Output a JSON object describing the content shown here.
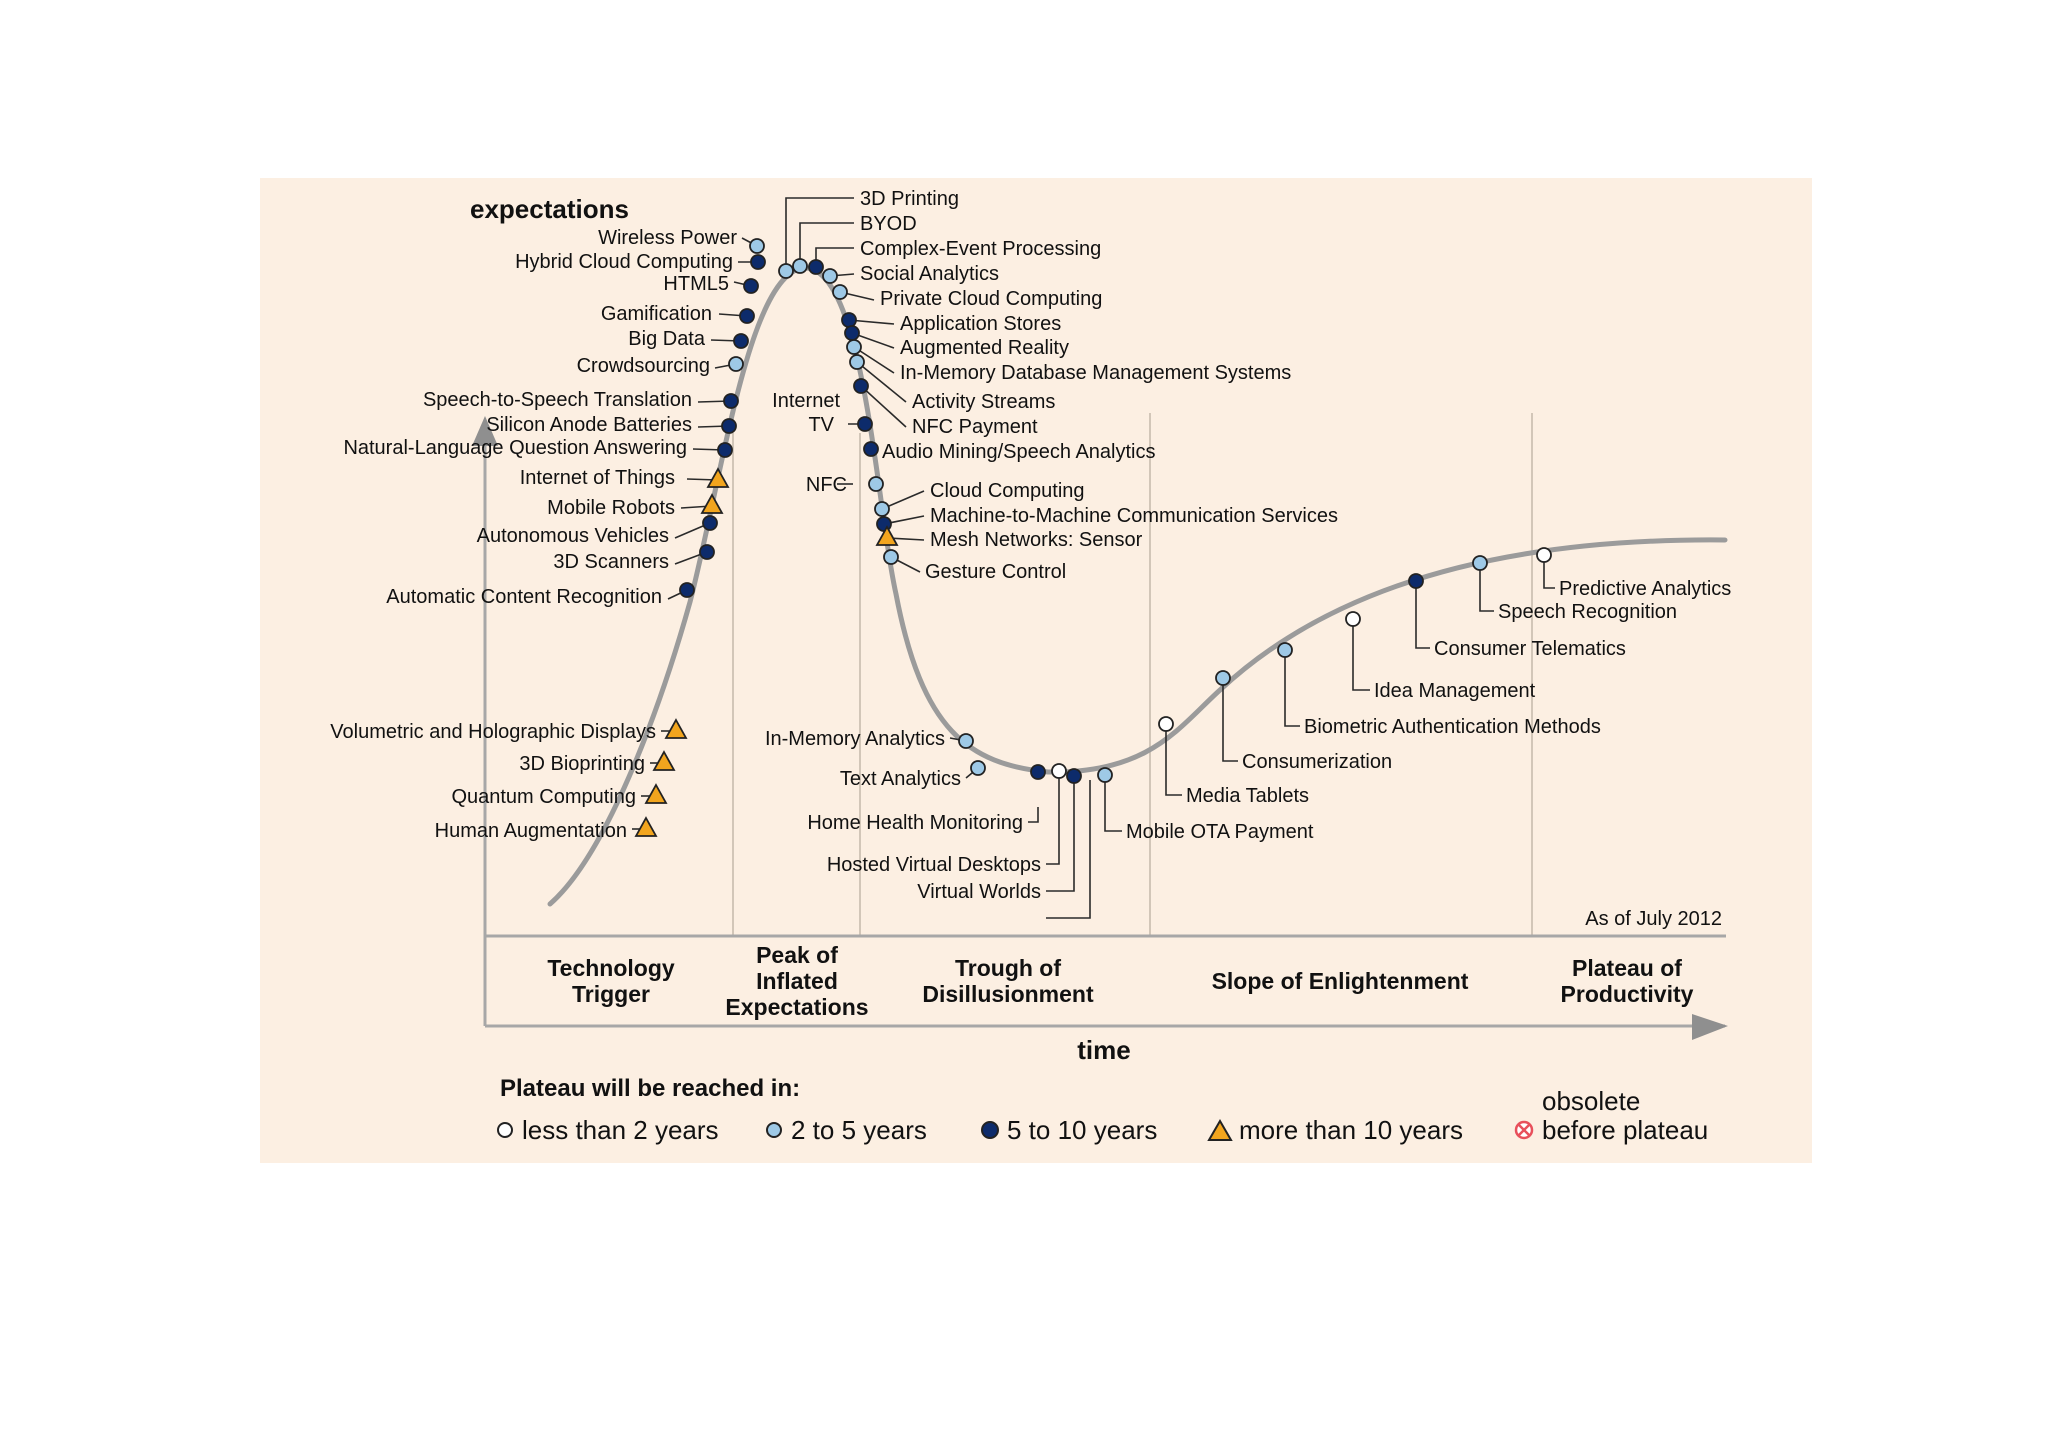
{
  "axis": {
    "y_label": "expectations",
    "x_label": "time"
  },
  "as_of": "As of July 2012",
  "phases": [
    {
      "lines": [
        "Technology",
        "Trigger"
      ]
    },
    {
      "lines": [
        "Peak of",
        "Inflated",
        "Expectations"
      ]
    },
    {
      "lines": [
        "Trough of",
        "Disillusionment"
      ]
    },
    {
      "lines": [
        "Slope of Enlightenment"
      ]
    },
    {
      "lines": [
        "Plateau of",
        "Productivity"
      ]
    }
  ],
  "legend": {
    "title": "Plateau will be reached in:",
    "items": [
      {
        "key": "lt2",
        "label": "less than 2 years"
      },
      {
        "key": "2to5",
        "label": "2 to 5 years"
      },
      {
        "key": "5to10",
        "label": "5 to 10 years"
      },
      {
        "key": "gt10",
        "label": "more than 10 years"
      },
      {
        "key": "obsolete",
        "label_line1": "obsolete",
        "label_line2": "before plateau"
      }
    ]
  },
  "colors": {
    "panel": "#fcefe2",
    "curve": "#9b9b9b",
    "lt2": "#ffffff",
    "2to5": "#9ec9e6",
    "5to10": "#0d2b6b",
    "gt10": "#f2a51e",
    "obsolete": "#e8505b"
  },
  "technologies": [
    {
      "name": "3D Printing",
      "category": "2to5"
    },
    {
      "name": "BYOD",
      "category": "2to5"
    },
    {
      "name": "Complex-Event Processing",
      "category": "5to10"
    },
    {
      "name": "Social Analytics",
      "category": "2to5"
    },
    {
      "name": "Private Cloud Computing",
      "category": "2to5"
    },
    {
      "name": "Application Stores",
      "category": "5to10"
    },
    {
      "name": "Augmented Reality",
      "category": "5to10"
    },
    {
      "name": "In-Memory Database Management Systems",
      "category": "2to5"
    },
    {
      "name": "Activity Streams",
      "category": "2to5"
    },
    {
      "name": "NFC Payment",
      "category": "5to10"
    },
    {
      "name": "Internet TV",
      "category": "5to10"
    },
    {
      "name": "Audio Mining/Speech Analytics",
      "category": "5to10"
    },
    {
      "name": "NFC",
      "category": "2to5"
    },
    {
      "name": "Cloud Computing",
      "category": "2to5"
    },
    {
      "name": "Machine-to-Machine Communication Services",
      "category": "5to10"
    },
    {
      "name": "Mesh Networks: Sensor",
      "category": "gt10"
    },
    {
      "name": "Gesture Control",
      "category": "2to5"
    },
    {
      "name": "Wireless Power",
      "category": "2to5"
    },
    {
      "name": "Hybrid Cloud Computing",
      "category": "5to10"
    },
    {
      "name": "HTML5",
      "category": "5to10"
    },
    {
      "name": "Gamification",
      "category": "5to10"
    },
    {
      "name": "Big Data",
      "category": "5to10"
    },
    {
      "name": "Crowdsourcing",
      "category": "2to5"
    },
    {
      "name": "Speech-to-Speech Translation",
      "category": "5to10"
    },
    {
      "name": "Silicon Anode Batteries",
      "category": "5to10"
    },
    {
      "name": "Natural-Language Question Answering",
      "category": "5to10"
    },
    {
      "name": "Internet of Things",
      "category": "gt10"
    },
    {
      "name": "Mobile Robots",
      "category": "gt10"
    },
    {
      "name": "Autonomous Vehicles",
      "category": "5to10"
    },
    {
      "name": "3D Scanners",
      "category": "5to10"
    },
    {
      "name": "Automatic Content Recognition",
      "category": "5to10"
    },
    {
      "name": "Volumetric and Holographic Displays",
      "category": "gt10"
    },
    {
      "name": "3D Bioprinting",
      "category": "gt10"
    },
    {
      "name": "Quantum Computing",
      "category": "gt10"
    },
    {
      "name": "Human Augmentation",
      "category": "gt10"
    },
    {
      "name": "In-Memory Analytics",
      "category": "2to5"
    },
    {
      "name": "Text Analytics",
      "category": "2to5"
    },
    {
      "name": "Home Health Monitoring",
      "category": "5to10"
    },
    {
      "name": "Hosted Virtual Desktops",
      "category": "lt2"
    },
    {
      "name": "Virtual Worlds",
      "category": "5to10"
    },
    {
      "name": "Mobile OTA Payment",
      "category": "2to5"
    },
    {
      "name": "Media Tablets",
      "category": "lt2"
    },
    {
      "name": "Consumerization",
      "category": "2to5"
    },
    {
      "name": "Biometric Authentication Methods",
      "category": "2to5"
    },
    {
      "name": "Idea Management",
      "category": "lt2"
    },
    {
      "name": "Consumer Telematics",
      "category": "5to10"
    },
    {
      "name": "Speech Recognition",
      "category": "2to5"
    },
    {
      "name": "Predictive Analytics",
      "category": "lt2"
    }
  ]
}
